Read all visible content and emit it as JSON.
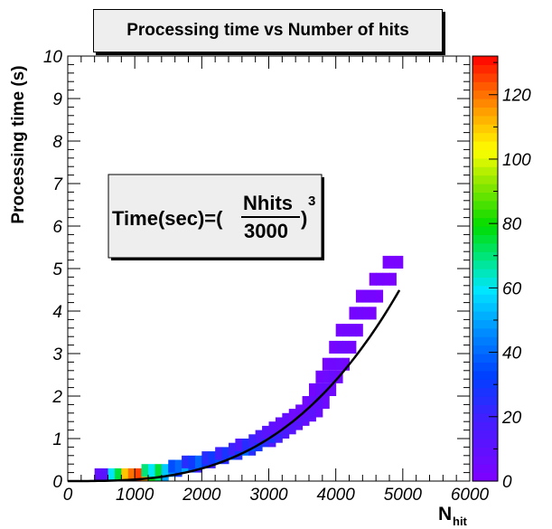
{
  "chart_data": {
    "type": "heatmap",
    "title": "Processing time vs Number of hits",
    "xlabel": "N",
    "xlabel_sub": "hit",
    "ylabel": "Processing time (s)",
    "xlim": [
      0,
      6000
    ],
    "ylim": [
      0,
      10
    ],
    "x_ticks": [
      "0",
      "1000",
      "2000",
      "3000",
      "4000",
      "5000",
      "6000"
    ],
    "y_ticks": [
      "0",
      "1",
      "2",
      "3",
      "4",
      "5",
      "6",
      "7",
      "8",
      "9",
      "10"
    ],
    "colorbar": {
      "min": 0,
      "max": 132,
      "ticks": [
        "0",
        "20",
        "40",
        "60",
        "80",
        "100",
        "120"
      ]
    },
    "formula": {
      "lhs": "Time(sec)=(",
      "numerator": "Nhits",
      "denominator": "3000",
      "rhs": ")",
      "exponent": "3"
    },
    "fit": {
      "function": "(x/3000)^3",
      "x_range": [
        0,
        4950
      ]
    },
    "bin_width": {
      "x": 100,
      "y": 0.1
    },
    "cells": [
      [
        400,
        0,
        10
      ],
      [
        500,
        0,
        12
      ],
      [
        600,
        0,
        60
      ],
      [
        700,
        0,
        75
      ],
      [
        800,
        0,
        110
      ],
      [
        900,
        0,
        120
      ],
      [
        1000,
        0,
        125
      ],
      [
        1100,
        0,
        115
      ],
      [
        1200,
        0,
        80
      ],
      [
        1300,
        0,
        70
      ],
      [
        1400,
        0,
        50
      ],
      [
        1100,
        0.1,
        70
      ],
      [
        1200,
        0.1,
        60
      ],
      [
        1300,
        0.1,
        75
      ],
      [
        1400,
        0.1,
        55
      ],
      [
        1500,
        0.1,
        45
      ],
      [
        1600,
        0.1,
        30
      ],
      [
        1500,
        0.2,
        35
      ],
      [
        1600,
        0.2,
        40
      ],
      [
        1700,
        0.2,
        50
      ],
      [
        1800,
        0.2,
        35
      ],
      [
        1900,
        0.2,
        20
      ],
      [
        1700,
        0.3,
        25
      ],
      [
        1800,
        0.3,
        30
      ],
      [
        1900,
        0.3,
        40
      ],
      [
        2000,
        0.3,
        30
      ],
      [
        2100,
        0.3,
        20
      ],
      [
        2000,
        0.4,
        25
      ],
      [
        2100,
        0.4,
        30
      ],
      [
        2200,
        0.4,
        35
      ],
      [
        2300,
        0.4,
        25
      ],
      [
        2200,
        0.5,
        20
      ],
      [
        2300,
        0.5,
        28
      ],
      [
        2400,
        0.5,
        35
      ],
      [
        2500,
        0.5,
        25
      ],
      [
        2400,
        0.6,
        20
      ],
      [
        2500,
        0.6,
        30
      ],
      [
        2600,
        0.6,
        40
      ],
      [
        2700,
        0.6,
        25
      ],
      [
        2500,
        0.7,
        15
      ],
      [
        2600,
        0.7,
        25
      ],
      [
        2700,
        0.7,
        35
      ],
      [
        2800,
        0.7,
        28
      ],
      [
        2700,
        0.8,
        20
      ],
      [
        2800,
        0.8,
        30
      ],
      [
        2900,
        0.8,
        25
      ],
      [
        3000,
        0.8,
        15
      ],
      [
        2800,
        0.9,
        15
      ],
      [
        2900,
        0.9,
        22
      ],
      [
        3000,
        0.9,
        28
      ],
      [
        3100,
        0.9,
        18
      ],
      [
        2900,
        1.0,
        12
      ],
      [
        3000,
        1.0,
        20
      ],
      [
        3100,
        1.0,
        22
      ],
      [
        3200,
        1.0,
        15
      ],
      [
        3000,
        1.1,
        10
      ],
      [
        3100,
        1.1,
        15
      ],
      [
        3200,
        1.1,
        18
      ],
      [
        3300,
        1.1,
        12
      ],
      [
        3100,
        1.2,
        8
      ],
      [
        3200,
        1.2,
        12
      ],
      [
        3300,
        1.2,
        15
      ],
      [
        3400,
        1.2,
        10
      ],
      [
        3200,
        1.3,
        8
      ],
      [
        3300,
        1.3,
        12
      ],
      [
        3400,
        1.3,
        14
      ],
      [
        3500,
        1.3,
        8
      ],
      [
        3300,
        1.4,
        6
      ],
      [
        3400,
        1.4,
        10
      ],
      [
        3500,
        1.4,
        12
      ],
      [
        3600,
        1.4,
        8
      ],
      [
        3400,
        1.5,
        6
      ],
      [
        3500,
        1.5,
        9
      ],
      [
        3600,
        1.5,
        11
      ],
      [
        3700,
        1.5,
        7
      ],
      [
        3500,
        1.7,
        5
      ],
      [
        3600,
        1.7,
        8
      ],
      [
        3700,
        1.7,
        9
      ],
      [
        3800,
        1.7,
        6
      ],
      [
        3600,
        2.0,
        4
      ],
      [
        3700,
        2.0,
        7
      ],
      [
        3800,
        2.0,
        8
      ],
      [
        3900,
        2.0,
        5
      ],
      [
        3700,
        2.3,
        4
      ],
      [
        3800,
        2.3,
        6
      ],
      [
        3900,
        2.3,
        7
      ],
      [
        4000,
        2.3,
        5
      ],
      [
        3800,
        2.6,
        3
      ],
      [
        3900,
        2.6,
        5
      ],
      [
        4000,
        2.6,
        6
      ],
      [
        4100,
        2.6,
        4
      ],
      [
        3900,
        3.0,
        3
      ],
      [
        4000,
        3.0,
        5
      ],
      [
        4100,
        3.0,
        5
      ],
      [
        4200,
        3.0,
        3
      ],
      [
        4000,
        3.4,
        3
      ],
      [
        4100,
        3.4,
        4
      ],
      [
        4200,
        3.4,
        4
      ],
      [
        4300,
        3.4,
        3
      ],
      [
        4200,
        3.8,
        3
      ],
      [
        4300,
        3.8,
        4
      ],
      [
        4400,
        3.8,
        3
      ],
      [
        4500,
        3.8,
        2
      ],
      [
        4300,
        4.2,
        2
      ],
      [
        4400,
        4.2,
        3
      ],
      [
        4500,
        4.2,
        3
      ],
      [
        4600,
        4.2,
        2
      ],
      [
        4500,
        4.6,
        2
      ],
      [
        4600,
        4.6,
        3
      ],
      [
        4700,
        4.6,
        2
      ],
      [
        4800,
        4.6,
        2
      ],
      [
        4700,
        5.0,
        2
      ],
      [
        4800,
        5.0,
        2
      ],
      [
        4900,
        5.0,
        2
      ]
    ]
  }
}
